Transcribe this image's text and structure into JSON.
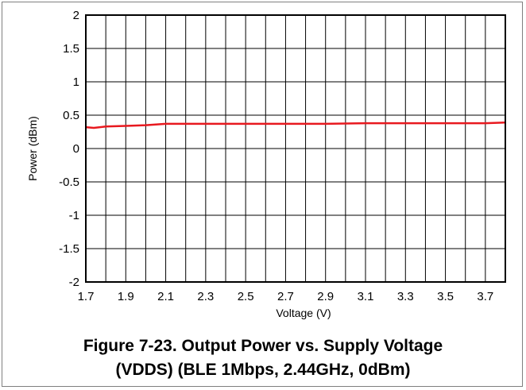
{
  "caption": {
    "line1": "Figure 7-23. Output Power vs. Supply Voltage",
    "line2": "(VDDS) (BLE 1Mbps, 2.44GHz, 0dBm)"
  },
  "chart_data": {
    "type": "line",
    "title": "",
    "xlabel": "Voltage (V)",
    "ylabel": "Power (dBm)",
    "xlim": [
      1.7,
      3.8
    ],
    "ylim": [
      -2,
      2
    ],
    "x_ticks": [
      1.7,
      1.9,
      2.1,
      2.3,
      2.5,
      2.7,
      2.9,
      3.1,
      3.3,
      3.5,
      3.7
    ],
    "x_tick_labels": [
      "1.7",
      "1.9",
      "2.1",
      "2.3",
      "2.5",
      "2.7",
      "2.9",
      "3.1",
      "3.3",
      "3.5",
      "3.7"
    ],
    "y_ticks": [
      2,
      1.5,
      1,
      0.5,
      0,
      -0.5,
      -1,
      -1.5,
      -2
    ],
    "y_tick_labels": [
      "2",
      "1.5",
      "1",
      "0.5",
      "0",
      "-0.5",
      "-1",
      "-1.5",
      "-2"
    ],
    "x_grid_step": 0.1,
    "grid": true,
    "legend": "none",
    "series": [
      {
        "color": "#e8191f",
        "x": [
          1.7,
          1.74,
          1.8,
          1.9,
          2.0,
          2.1,
          2.3,
          2.5,
          2.7,
          2.9,
          3.1,
          3.3,
          3.5,
          3.7,
          3.8
        ],
        "y": [
          0.32,
          0.31,
          0.33,
          0.34,
          0.35,
          0.37,
          0.37,
          0.37,
          0.37,
          0.37,
          0.38,
          0.38,
          0.38,
          0.38,
          0.39
        ]
      }
    ]
  }
}
